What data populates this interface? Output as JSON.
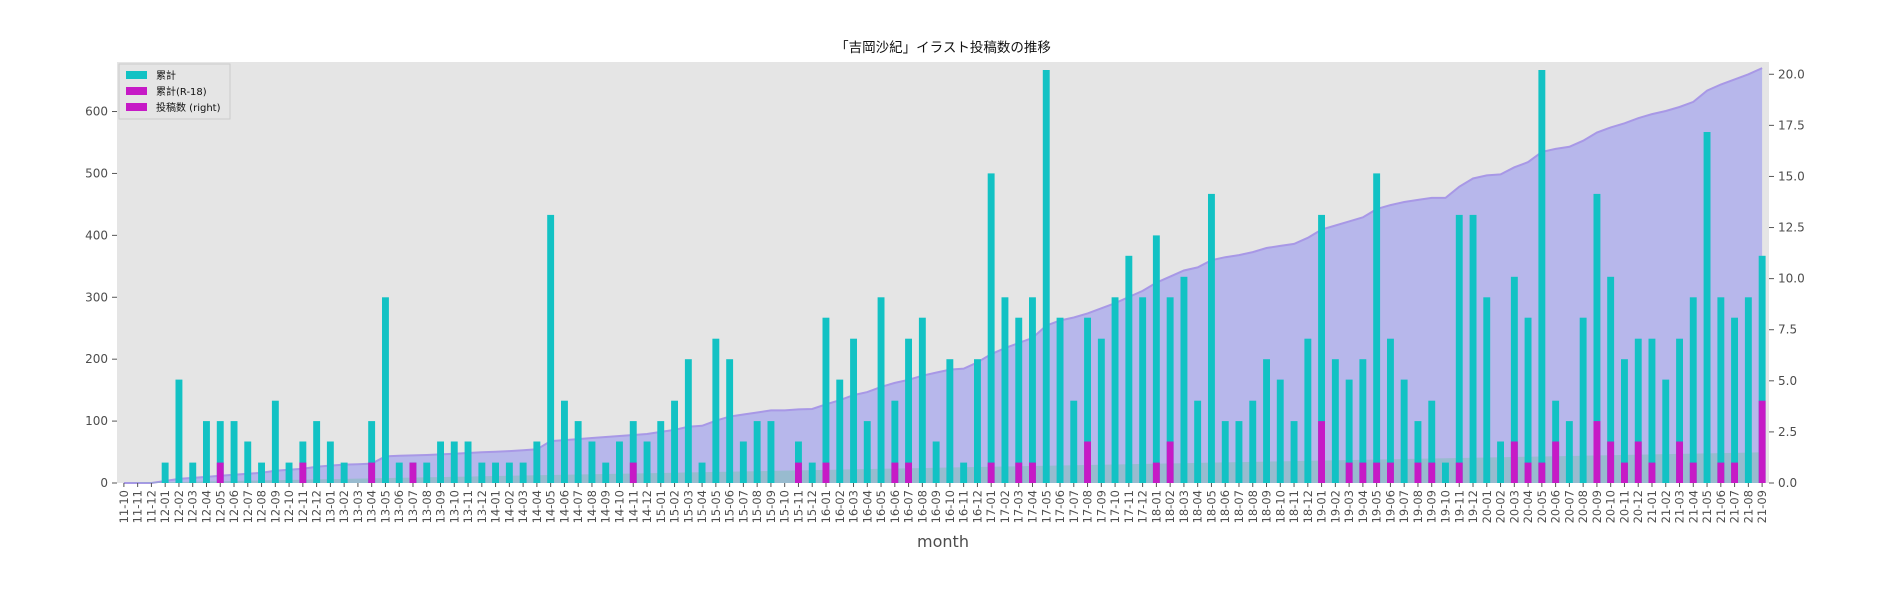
{
  "chart_data": {
    "type": "bar",
    "title": "「吉岡沙紀」イラスト投稿数の推移",
    "xlabel": "month",
    "ylabel": "",
    "ylim": [
      0,
      680
    ],
    "y2lim": [
      0,
      20.6
    ],
    "yticks": [
      "0",
      "100",
      "200",
      "300",
      "400",
      "500",
      "600"
    ],
    "y2ticks": [
      "0.0",
      "2.5",
      "5.0",
      "7.5",
      "10.0",
      "12.5",
      "15.0",
      "17.5",
      "20.0"
    ],
    "grid": false,
    "legend_position": "upper-left",
    "colors": {
      "cumulative": "#12c2c4",
      "r18": "#c61ac6",
      "area": "#b4b4eb",
      "area_line": "#a898e6",
      "plot_bg": "#e5e5e5"
    },
    "categories": [
      "11-10",
      "11-11",
      "11-12",
      "12-01",
      "12-02",
      "12-03",
      "12-04",
      "12-05",
      "12-06",
      "12-07",
      "12-08",
      "12-09",
      "12-10",
      "12-11",
      "12-12",
      "13-01",
      "13-02",
      "13-03",
      "13-04",
      "13-05",
      "13-06",
      "13-07",
      "13-08",
      "13-09",
      "13-10",
      "13-11",
      "13-12",
      "14-01",
      "14-02",
      "14-03",
      "14-04",
      "14-05",
      "14-06",
      "14-07",
      "14-08",
      "14-09",
      "14-10",
      "14-11",
      "14-12",
      "15-01",
      "15-02",
      "15-03",
      "15-04",
      "15-05",
      "15-06",
      "15-07",
      "15-08",
      "15-09",
      "15-10",
      "15-11",
      "15-12",
      "16-01",
      "16-02",
      "16-03",
      "16-04",
      "16-05",
      "16-06",
      "16-07",
      "16-08",
      "16-09",
      "16-10",
      "16-11",
      "16-12",
      "17-01",
      "17-02",
      "17-03",
      "17-04",
      "17-05",
      "17-06",
      "17-07",
      "17-08",
      "17-09",
      "17-10",
      "17-11",
      "17-12",
      "18-01",
      "18-02",
      "18-03",
      "18-04",
      "18-05",
      "18-06",
      "18-07",
      "18-08",
      "18-09",
      "18-10",
      "18-11",
      "18-12",
      "19-01",
      "19-02",
      "19-03",
      "19-04",
      "19-05",
      "19-06",
      "19-07",
      "19-08",
      "19-09",
      "19-10",
      "19-11",
      "19-12",
      "20-01",
      "20-02",
      "20-03",
      "20-04",
      "20-05",
      "20-06",
      "20-07",
      "20-08",
      "20-09",
      "20-10",
      "20-11",
      "20-12",
      "21-01",
      "21-02",
      "21-03",
      "21-04",
      "21-05",
      "21-06",
      "21-07",
      "21-08",
      "21-09"
    ],
    "series": [
      {
        "name": "累計",
        "axis": "left",
        "kind": "bar",
        "values": [
          0,
          0,
          0,
          33,
          167,
          33,
          100,
          100,
          100,
          67,
          33,
          133,
          33,
          67,
          100,
          67,
          33,
          0,
          100,
          300,
          33,
          33,
          33,
          67,
          67,
          67,
          33,
          33,
          33,
          33,
          67,
          433,
          133,
          100,
          67,
          33,
          67,
          100,
          67,
          100,
          133,
          200,
          33,
          233,
          200,
          67,
          100,
          100,
          0,
          67,
          33,
          267,
          167,
          233,
          100,
          300,
          133,
          233,
          267,
          67,
          200,
          33,
          200,
          500,
          300,
          267,
          300,
          667,
          267,
          133,
          267,
          233,
          300,
          367,
          300,
          400,
          300,
          333,
          133,
          467,
          100,
          100,
          133,
          200,
          167,
          100,
          233,
          433,
          200,
          167,
          200,
          500,
          233,
          167,
          100,
          133,
          33,
          433,
          433,
          300,
          67,
          333,
          267,
          667,
          133,
          100,
          267,
          467,
          333,
          200,
          233,
          233,
          167,
          233,
          300,
          567,
          300,
          267,
          300,
          367
        ]
      },
      {
        "name": "累計(R-18)",
        "axis": "left",
        "kind": "bar",
        "values": [
          0,
          0,
          0,
          0,
          0,
          0,
          0,
          33,
          0,
          0,
          0,
          0,
          0,
          33,
          0,
          0,
          0,
          0,
          33,
          0,
          0,
          33,
          0,
          0,
          0,
          0,
          0,
          0,
          0,
          0,
          0,
          0,
          0,
          0,
          0,
          0,
          0,
          33,
          0,
          0,
          0,
          0,
          0,
          0,
          0,
          0,
          0,
          0,
          0,
          33,
          0,
          33,
          0,
          0,
          0,
          0,
          33,
          33,
          0,
          0,
          0,
          0,
          0,
          33,
          0,
          33,
          33,
          0,
          0,
          0,
          67,
          0,
          0,
          0,
          0,
          33,
          67,
          0,
          0,
          0,
          0,
          0,
          0,
          0,
          0,
          0,
          0,
          100,
          0,
          33,
          33,
          33,
          33,
          0,
          33,
          33,
          0,
          33,
          0,
          0,
          0,
          67,
          33,
          33,
          67,
          0,
          0,
          100,
          67,
          33,
          67,
          33,
          0,
          67,
          33,
          0,
          33,
          33,
          0,
          133
        ]
      },
      {
        "name": "投稿数 (right)",
        "axis": "right",
        "kind": "area",
        "values": [
          0,
          0,
          0,
          0.1,
          0.2,
          0.25,
          0.3,
          0.35,
          0.4,
          0.45,
          0.5,
          0.6,
          0.65,
          0.7,
          0.8,
          0.85,
          0.9,
          0.92,
          0.95,
          1.3,
          1.33,
          1.35,
          1.37,
          1.4,
          1.43,
          1.47,
          1.5,
          1.53,
          1.56,
          1.6,
          1.65,
          2.05,
          2.1,
          2.15,
          2.2,
          2.25,
          2.3,
          2.35,
          2.4,
          2.5,
          2.6,
          2.75,
          2.8,
          3.05,
          3.25,
          3.35,
          3.45,
          3.55,
          3.55,
          3.6,
          3.62,
          3.85,
          4.05,
          4.3,
          4.45,
          4.7,
          4.9,
          5.05,
          5.25,
          5.4,
          5.55,
          5.6,
          5.9,
          6.3,
          6.6,
          6.85,
          7.1,
          7.7,
          7.95,
          8.1,
          8.3,
          8.55,
          8.8,
          9.1,
          9.4,
          9.8,
          10.1,
          10.4,
          10.55,
          10.9,
          11.05,
          11.15,
          11.3,
          11.5,
          11.6,
          11.7,
          12.0,
          12.4,
          12.6,
          12.8,
          13.0,
          13.4,
          13.6,
          13.75,
          13.85,
          13.95,
          13.95,
          14.5,
          14.9,
          15.05,
          15.1,
          15.45,
          15.7,
          16.2,
          16.35,
          16.45,
          16.75,
          17.15,
          17.4,
          17.6,
          17.85,
          18.05,
          18.2,
          18.4,
          18.65,
          19.2,
          19.5,
          19.75,
          20.0,
          20.3
        ]
      }
    ],
    "green_band": {
      "color": "#5ec29c",
      "y2_start": 0,
      "y2_end": 1.5
    }
  }
}
